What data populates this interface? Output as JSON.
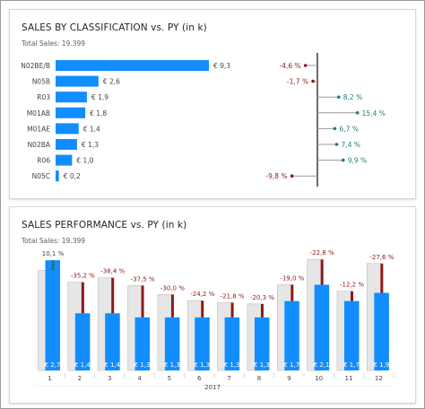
{
  "panel1": {
    "title": "SALES BY CLASSIFICATION vs. PY (in k)",
    "subtitle": "Total Sales: 19.399"
  },
  "panel2": {
    "title": "SALES PERFORMANCE vs. PY (in k)",
    "subtitle": "Total Sales: 19.399"
  },
  "colors": {
    "bar": "#118dff",
    "py_bar": "#e6e6e6",
    "negative": "#8b1a1a",
    "positive": "#1f7a7a",
    "axis": "#555555",
    "label": "#444444"
  },
  "chart_data": [
    {
      "type": "bar",
      "orientation": "horizontal",
      "title": "SALES BY CLASSIFICATION vs. PY (in k)",
      "categories": [
        "N02BE/B",
        "N05B",
        "R03",
        "M01AB",
        "M01AE",
        "N02BA",
        "R06",
        "N05C"
      ],
      "series": [
        {
          "values": [
            9.3,
            2.6,
            1.9,
            1.8,
            1.4,
            1.3,
            1.0,
            0.2
          ],
          "labels": [
            "€ 9,3",
            "€ 2,6",
            "€ 1,9",
            "€ 1,8",
            "€ 1,4",
            "€ 1,3",
            "€ 1,0",
            "€ 0,2"
          ]
        },
        {
          "values": [
            -4.6,
            -1.7,
            8.2,
            15.4,
            6.7,
            7.4,
            9.9,
            -9.8
          ],
          "labels": [
            "-4,6 %",
            "-1,7 %",
            "8,2 %",
            "15,4 %",
            "6,7 %",
            "7,4 %",
            "9,9 %",
            "-9,8 %"
          ]
        }
      ]
    },
    {
      "type": "bar",
      "title": "SALES PERFORMANCE vs. PY (in k)",
      "categories": [
        "1",
        "2",
        "3",
        "4",
        "5",
        "6",
        "7",
        "8",
        "9",
        "10",
        "11",
        "12"
      ],
      "group_label": "2017",
      "series": [
        {
          "values": [
            2.7,
            1.4,
            1.4,
            1.3,
            1.3,
            1.3,
            1.3,
            1.3,
            1.7,
            2.1,
            1.7,
            1.9
          ],
          "labels": [
            "€ 2,7",
            "€ 1,4",
            "€ 1,4",
            "€ 1,3",
            "€ 1,3",
            "€ 1,3",
            "€ 1,3",
            "€ 1,3",
            "€ 1,7",
            "€ 2,1",
            "€ 1,7",
            "€ 1,9"
          ]
        },
        {
          "values": [
            2.45,
            2.16,
            2.27,
            2.08,
            1.86,
            1.71,
            1.66,
            1.63,
            2.1,
            2.72,
            1.94,
            2.62
          ]
        },
        {
          "values": [
            10.1,
            -35.2,
            -38.4,
            -37.5,
            -30.0,
            -24.2,
            -21.8,
            -20.3,
            -19.0,
            -22.8,
            -12.2,
            -27.6
          ],
          "labels": [
            "10,1 %",
            "-35,2 %",
            "-38,4 %",
            "-37,5 %",
            "-30,0 %",
            "-24,2 %",
            "-21,8 %",
            "-20,3 %",
            "-19,0 %",
            "-22,8 %",
            "-12,2 %",
            "-27,6 %"
          ]
        }
      ]
    }
  ]
}
